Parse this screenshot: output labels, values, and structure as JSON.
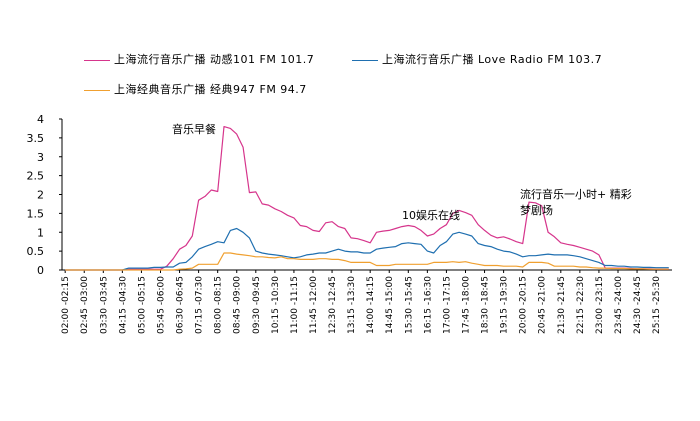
{
  "chart_data": {
    "type": "line",
    "ylim": [
      0,
      4
    ],
    "yticks": [
      "0",
      "0.5",
      "1",
      "1.5",
      "2",
      "2.5",
      "3",
      "3.5",
      "4"
    ],
    "ytick_values": [
      0,
      0.5,
      1,
      1.5,
      2,
      2.5,
      3,
      3.5,
      4
    ],
    "grid": false,
    "legend_position": "top",
    "x_tick_labels": [
      "02:00 -02:15",
      "02:45 -03:00",
      "03:30 -03:45",
      "04:15 -04:30",
      "05:00 -05:15",
      "05:45 -06:00",
      "06:30 -06:45",
      "07:15 -07:30",
      "08:00 -08:15",
      "08:45 -09:00",
      "09:30 -09:45",
      "10:15 -10:30",
      "11:00 -11:15",
      "11:45 -12:00",
      "12:30 -12:45",
      "13:15 -13:30",
      "14:00 -14:15",
      "14:45 -15:00",
      "15:30 -15:45",
      "16:15 -16:30",
      "17:00 -17:15",
      "17:45 -18:00",
      "18:30 -18:45",
      "19:15 -19:30",
      "20:00 -20:15",
      "20:45 -21:00",
      "21:30 -21:45",
      "22:15 -22:30",
      "23:00 -23:15",
      "23:45 -24:00",
      "24:30 -24:45",
      "25:15 -25:30"
    ],
    "series": [
      {
        "name": "上海流行音乐广播 动感101 FM 101.7",
        "color": "#d6358c",
        "values": [
          0,
          0,
          0,
          0,
          0,
          0,
          0,
          0,
          0,
          0,
          0.02,
          0.02,
          0.02,
          0.02,
          0.02,
          0.02,
          0.1,
          0.3,
          0.55,
          0.65,
          0.9,
          1.85,
          1.95,
          2.12,
          2.08,
          3.8,
          3.75,
          3.6,
          3.25,
          2.05,
          2.07,
          1.75,
          1.72,
          1.62,
          1.55,
          1.45,
          1.38,
          1.18,
          1.15,
          1.05,
          1.02,
          1.25,
          1.28,
          1.15,
          1.1,
          0.85,
          0.83,
          0.78,
          0.72,
          1.0,
          1.03,
          1.05,
          1.1,
          1.15,
          1.18,
          1.15,
          1.05,
          0.9,
          0.95,
          1.1,
          1.2,
          1.5,
          1.58,
          1.52,
          1.45,
          1.2,
          1.05,
          0.92,
          0.85,
          0.88,
          0.82,
          0.75,
          0.7,
          1.8,
          1.78,
          1.7,
          1.0,
          0.88,
          0.72,
          0.68,
          0.65,
          0.6,
          0.55,
          0.5,
          0.4,
          0.05,
          0.05,
          0.05,
          0.05,
          0.04,
          0.03,
          0.03,
          0.03,
          0.02,
          0.02,
          0.02
        ]
      },
      {
        "name": "上海流行音乐广播 Love Radio FM 103.7",
        "color": "#1f6fb0",
        "values": [
          0,
          0,
          0,
          0,
          0,
          0,
          0,
          0,
          0,
          0,
          0.05,
          0.05,
          0.05,
          0.05,
          0.07,
          0.07,
          0.08,
          0.08,
          0.18,
          0.2,
          0.35,
          0.55,
          0.62,
          0.68,
          0.75,
          0.72,
          1.05,
          1.1,
          1.0,
          0.85,
          0.5,
          0.45,
          0.42,
          0.4,
          0.38,
          0.35,
          0.32,
          0.35,
          0.4,
          0.42,
          0.45,
          0.45,
          0.5,
          0.55,
          0.5,
          0.48,
          0.48,
          0.45,
          0.45,
          0.55,
          0.58,
          0.6,
          0.62,
          0.7,
          0.72,
          0.7,
          0.68,
          0.5,
          0.45,
          0.65,
          0.75,
          0.95,
          1.0,
          0.95,
          0.9,
          0.7,
          0.65,
          0.62,
          0.55,
          0.5,
          0.48,
          0.42,
          0.35,
          0.38,
          0.38,
          0.4,
          0.42,
          0.4,
          0.4,
          0.4,
          0.38,
          0.35,
          0.3,
          0.25,
          0.2,
          0.12,
          0.12,
          0.1,
          0.1,
          0.08,
          0.08,
          0.07,
          0.07,
          0.06,
          0.06,
          0.06
        ]
      },
      {
        "name": "上海经典音乐广播 经典947 FM 94.7",
        "color": "#f0a030",
        "values": [
          0,
          0,
          0,
          0,
          0,
          0,
          0,
          0,
          0,
          0,
          0,
          0,
          0,
          0,
          0,
          0,
          0,
          0,
          0.02,
          0.03,
          0.05,
          0.15,
          0.15,
          0.15,
          0.15,
          0.45,
          0.45,
          0.42,
          0.4,
          0.38,
          0.35,
          0.35,
          0.33,
          0.32,
          0.35,
          0.3,
          0.3,
          0.28,
          0.28,
          0.28,
          0.3,
          0.3,
          0.28,
          0.28,
          0.25,
          0.2,
          0.2,
          0.2,
          0.2,
          0.12,
          0.12,
          0.12,
          0.15,
          0.15,
          0.15,
          0.15,
          0.15,
          0.15,
          0.2,
          0.2,
          0.2,
          0.22,
          0.2,
          0.22,
          0.18,
          0.15,
          0.12,
          0.12,
          0.12,
          0.1,
          0.1,
          0.1,
          0.08,
          0.2,
          0.2,
          0.2,
          0.18,
          0.1,
          0.1,
          0.1,
          0.1,
          0.08,
          0.08,
          0.06,
          0.05,
          0.05,
          0.04,
          0.04,
          0.04,
          0.03,
          0.03,
          0.03,
          0.02,
          0.02,
          0.02,
          0.02
        ]
      }
    ],
    "annotations": [
      {
        "text": "音乐早餐",
        "x_index": 25,
        "y": 3.8
      },
      {
        "text": "10娱乐在线",
        "x_index": 61,
        "y": 1.5
      },
      {
        "text": "流行音乐一小时+  精彩",
        "x_index": 73,
        "y": 1.8
      },
      {
        "text": "梦剧场",
        "x_index": 73,
        "y": 1.45
      }
    ]
  }
}
